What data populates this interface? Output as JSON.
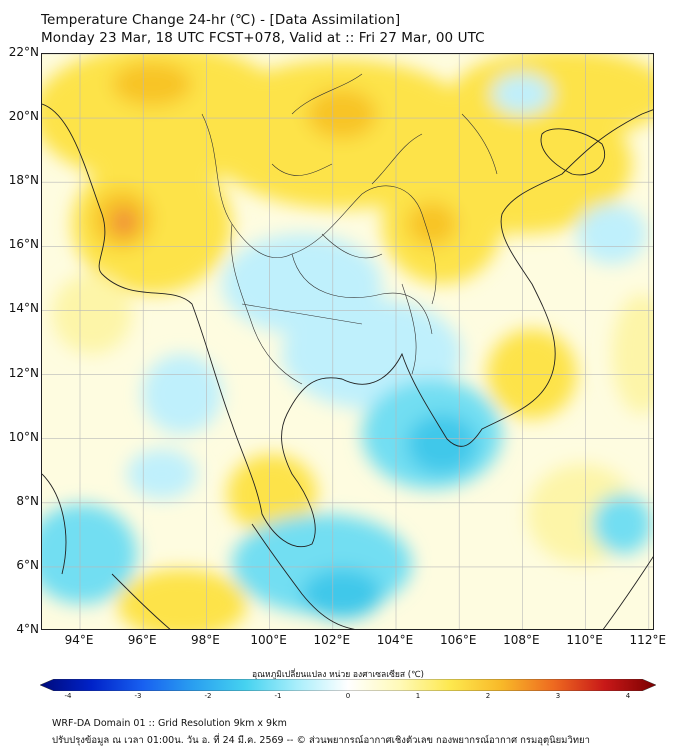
{
  "title_line1": "Temperature Change 24-hr (℃) - [Data Assimilation]",
  "title_line2": "Monday 23 Mar, 18 UTC FCST+078, Valid at :: Fri 27 Mar, 00 UTC",
  "map": {
    "lat_labels": [
      "22°N",
      "20°N",
      "18°N",
      "16°N",
      "14°N",
      "12°N",
      "10°N",
      "8°N",
      "6°N",
      "4°N"
    ],
    "lon_labels": [
      "94°E",
      "96°E",
      "98°E",
      "100°E",
      "102°E",
      "104°E",
      "106°E",
      "108°E",
      "110°E",
      "112°E"
    ],
    "colors": {
      "warm_light": "#fdf5a8",
      "warm": "#fde34a",
      "warm_strong": "#f8c428",
      "hot": "#f08c3a",
      "cool_light": "#bff0fc",
      "cool": "#72def2",
      "cool_strong": "#40c8ea",
      "border_line": "#222222"
    }
  },
  "colorbar": {
    "title": "อุณหภูมิเปลี่ยนแปลง หน่วย องศาเซลเซียส (℃)",
    "ticks": [
      "-4",
      "-3",
      "-2",
      "-1",
      "0",
      "1",
      "2",
      "3",
      "4"
    ],
    "stops": [
      "#000a7a",
      "#0022c8",
      "#1860f0",
      "#2aa0f0",
      "#45d2f0",
      "#a8eefb",
      "#ffffff",
      "#fffab8",
      "#fde84e",
      "#f8b828",
      "#ee6a20",
      "#c81818",
      "#7a0000"
    ]
  },
  "footer_line1": "WRF-DA Domain 01 :: Grid Resolution 9km x 9km",
  "footer_line2": "ปรับปรุงข้อมูล ณ เวลา 01:00น. วัน อ. ที่ 24 มี.ค. 2569 -- © ส่วนพยากรณ์อากาศเชิงตัวเลข กองพยากรณ์อากาศ กรมอุตุนิยมวิทยา"
}
